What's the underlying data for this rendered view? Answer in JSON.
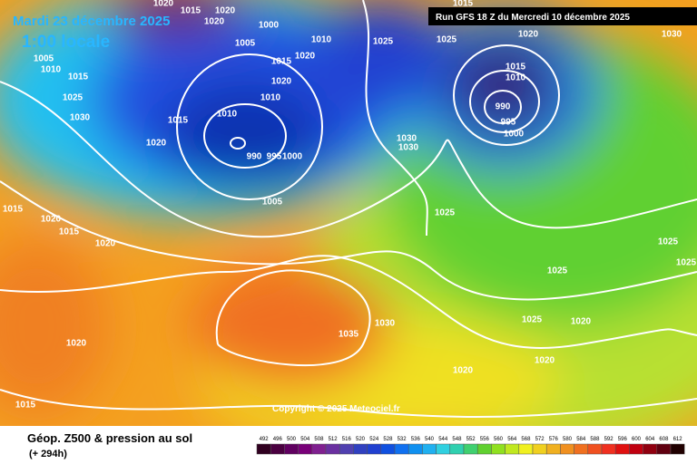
{
  "header": {
    "date": "Mardi 23 décembre 2025",
    "time": "1:00 locale",
    "run": "Run GFS 18 Z du Mercredi 10 décembre 2025"
  },
  "copyright": "Copyright © 2025 Meteociel.fr",
  "footer": {
    "title": "Géop. Z500 & pression au sol",
    "lead": "(+ 294h)"
  },
  "scale": [
    "492",
    "496",
    "500",
    "504",
    "508",
    "512",
    "516",
    "520",
    "524",
    "528",
    "532",
    "536",
    "540",
    "544",
    "548",
    "552",
    "556",
    "560",
    "564",
    "568",
    "572",
    "576",
    "580",
    "584",
    "588",
    "592",
    "596",
    "600",
    "604",
    "608",
    "612"
  ],
  "isobar_labels": [
    "1020",
    "1015",
    "1020",
    "1005",
    "1000",
    "1010",
    "1015",
    "1020",
    "1020",
    "1010",
    "1010",
    "1015",
    "1020",
    "990",
    "995",
    "1000",
    "1005",
    "1025",
    "1015",
    "1025",
    "1020",
    "1015",
    "1010",
    "990",
    "995",
    "1000",
    "1030",
    "1030",
    "1025",
    "1025",
    "1025",
    "1020",
    "1025",
    "1025",
    "1030",
    "1030",
    "1035",
    "1020",
    "1020",
    "1015",
    "1020",
    "1015",
    "1020",
    "1030",
    "1025",
    "1015",
    "1010",
    "1005",
    "1020",
    "1020",
    "1015"
  ]
}
